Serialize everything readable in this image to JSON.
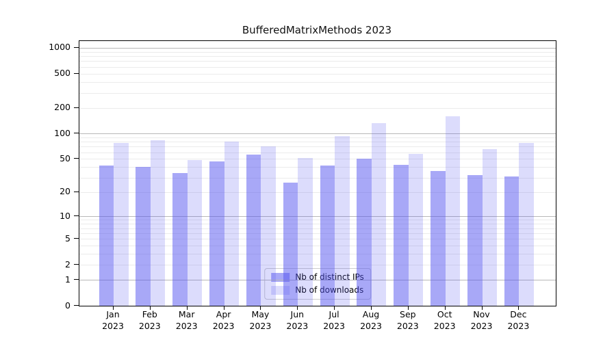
{
  "chart_data": {
    "type": "bar",
    "title": "BufferedMatrixMethods 2023",
    "categories": [
      "Jan",
      "Feb",
      "Mar",
      "Apr",
      "May",
      "Jun",
      "Jul",
      "Aug",
      "Sep",
      "Oct",
      "Nov",
      "Dec"
    ],
    "x_year_label": "2023",
    "series": [
      {
        "name": "Nb of distinct IPs",
        "values": [
          42,
          40,
          34,
          47,
          56,
          26,
          42,
          50,
          43,
          36,
          32,
          31
        ]
      },
      {
        "name": "Nb of downloads",
        "values": [
          77,
          84,
          49,
          81,
          71,
          51,
          94,
          132,
          58,
          160,
          66,
          78
        ]
      }
    ],
    "y_scale": "log10(value+1)",
    "y_ticks": [
      1000,
      500,
      200,
      100,
      50,
      20,
      10,
      5,
      2,
      1,
      0
    ],
    "y_major_gridlines": [
      1,
      10,
      100,
      1000
    ],
    "y_minor_gridlines": [
      2,
      3,
      4,
      5,
      6,
      7,
      8,
      9,
      20,
      30,
      40,
      50,
      60,
      70,
      80,
      90,
      200,
      300,
      400,
      500,
      600,
      700,
      800,
      900
    ],
    "ylim": [
      0,
      1200
    ],
    "xlabel": "",
    "ylabel": "",
    "grid": true,
    "legend_position": "lower center",
    "colors": {
      "bar_distinct_ips": "rgba(81,81,240,0.5)",
      "bar_downloads": "rgba(81,81,240,0.2)",
      "bar_base_hex": "#5151f0",
      "grid_major": "#b8b8b8",
      "grid_minor": "#ebebeb",
      "axis": "#000000",
      "legend_border": "#cccccc",
      "text": "#000000"
    }
  }
}
